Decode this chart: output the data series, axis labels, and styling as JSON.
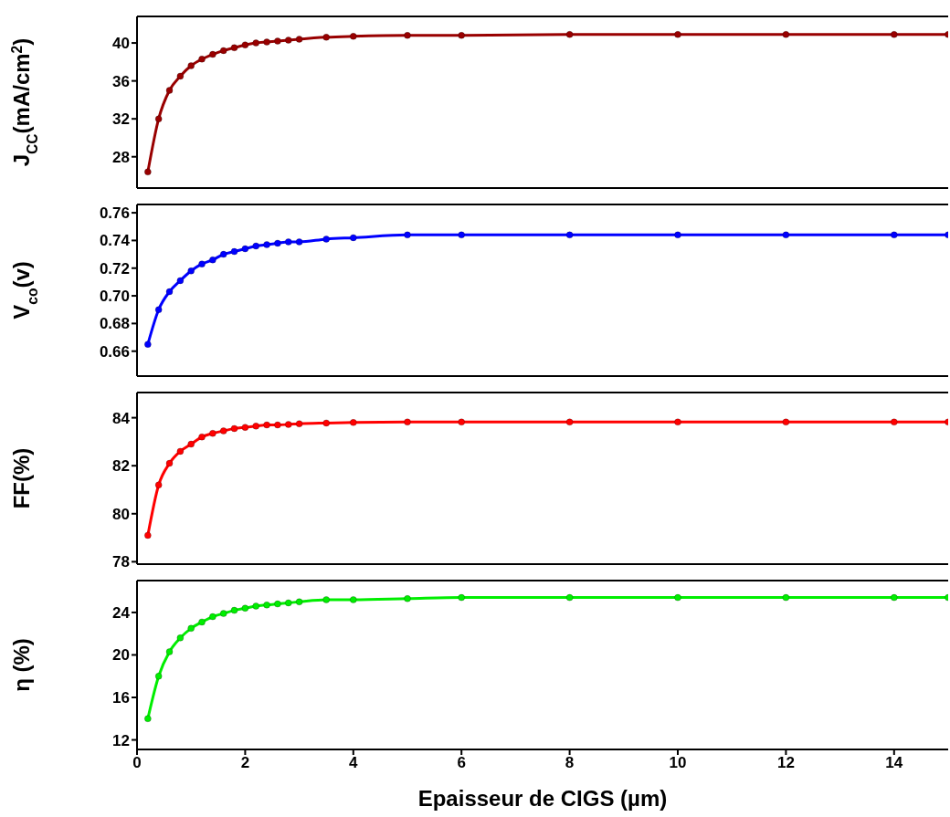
{
  "chart_data": [
    {
      "type": "line",
      "x": [
        0.2,
        0.4,
        0.6,
        0.8,
        1.0,
        1.2,
        1.4,
        1.6,
        1.8,
        2.0,
        2.2,
        2.4,
        2.6,
        2.8,
        3.0,
        3.5,
        4,
        5,
        6,
        8,
        10,
        12,
        14,
        15
      ],
      "ylabel": "J$_{CC}$(mA/cm$^{2}$)",
      "marker": "circle",
      "tick_labels": "y",
      "xlim": [
        0,
        15
      ],
      "xticks": [
        0,
        2,
        4,
        6,
        8,
        10,
        12,
        14
      ],
      "ylim": [
        24.7,
        42.8
      ],
      "yticks": [
        28,
        32,
        36,
        40
      ],
      "series": [
        {
          "color": "#990000",
          "values": [
            26.4,
            32.0,
            35.0,
            36.5,
            37.6,
            38.3,
            38.8,
            39.2,
            39.5,
            39.8,
            40.0,
            40.1,
            40.2,
            40.3,
            40.4,
            40.6,
            40.7,
            40.8,
            40.8,
            40.9,
            40.9,
            40.9,
            40.9,
            40.9
          ]
        }
      ]
    },
    {
      "type": "line",
      "x": [
        0.2,
        0.4,
        0.6,
        0.8,
        1.0,
        1.2,
        1.4,
        1.6,
        1.8,
        2.0,
        2.2,
        2.4,
        2.6,
        2.8,
        3.0,
        3.5,
        4,
        5,
        6,
        8,
        10,
        12,
        14,
        15
      ],
      "ylabel": "V$_{co}$(v)",
      "marker": "circle",
      "tick_labels": "y",
      "xlim": [
        0,
        15
      ],
      "xticks": [
        0,
        2,
        4,
        6,
        8,
        10,
        12,
        14
      ],
      "ylim": [
        0.642,
        0.766
      ],
      "yticks": [
        {
          "value": 0.66,
          "label": "0.66"
        },
        {
          "value": 0.68,
          "label": "0.68"
        },
        {
          "value": 0.7,
          "label": "0.70"
        },
        {
          "value": 0.72,
          "label": "0.72"
        },
        {
          "value": 0.74,
          "label": "0.74"
        },
        {
          "value": 0.76,
          "label": "0.76"
        }
      ],
      "series": [
        {
          "color": "#0000ff",
          "values": [
            0.665,
            0.69,
            0.703,
            0.711,
            0.718,
            0.723,
            0.726,
            0.73,
            0.732,
            0.734,
            0.736,
            0.737,
            0.738,
            0.739,
            0.739,
            0.741,
            0.742,
            0.744,
            0.744,
            0.744,
            0.744,
            0.744,
            0.744,
            0.744
          ]
        }
      ]
    },
    {
      "type": "line",
      "x": [
        0.2,
        0.4,
        0.6,
        0.8,
        1.0,
        1.2,
        1.4,
        1.6,
        1.8,
        2.0,
        2.2,
        2.4,
        2.6,
        2.8,
        3.0,
        3.5,
        4,
        5,
        6,
        8,
        10,
        12,
        14,
        15
      ],
      "ylabel": "FF(%)",
      "marker": "circle",
      "tick_labels": "y",
      "xlim": [
        0,
        15
      ],
      "xticks": [
        0,
        2,
        4,
        6,
        8,
        10,
        12,
        14
      ],
      "ylim": [
        77.9,
        85.05
      ],
      "yticks": [
        78,
        80,
        82,
        84
      ],
      "series": [
        {
          "color": "#ff0000",
          "values": [
            79.1,
            81.2,
            82.1,
            82.6,
            82.9,
            83.2,
            83.35,
            83.45,
            83.55,
            83.6,
            83.65,
            83.7,
            83.7,
            83.72,
            83.75,
            83.78,
            83.8,
            83.82,
            83.82,
            83.82,
            83.82,
            83.82,
            83.82,
            83.82
          ]
        }
      ]
    },
    {
      "type": "line",
      "x": [
        0.2,
        0.4,
        0.6,
        0.8,
        1.0,
        1.2,
        1.4,
        1.6,
        1.8,
        2.0,
        2.2,
        2.4,
        2.6,
        2.8,
        3.0,
        3.5,
        4,
        5,
        6,
        8,
        10,
        12,
        14,
        15
      ],
      "ylabel": "η (%)",
      "xlabel": "Epaisseur de CIGS (µm)",
      "marker": "circle",
      "xlim": [
        0,
        15
      ],
      "xticks": [
        0,
        2,
        4,
        6,
        8,
        10,
        12,
        14
      ],
      "ylim": [
        11.1,
        27.0
      ],
      "yticks": [
        12,
        16,
        20,
        24
      ],
      "series": [
        {
          "color": "#00ee00",
          "values": [
            14.0,
            18.0,
            20.3,
            21.6,
            22.5,
            23.1,
            23.6,
            23.9,
            24.2,
            24.4,
            24.6,
            24.7,
            24.8,
            24.9,
            25.0,
            25.2,
            25.2,
            25.3,
            25.4,
            25.4,
            25.4,
            25.4,
            25.4,
            25.4
          ]
        }
      ]
    }
  ]
}
